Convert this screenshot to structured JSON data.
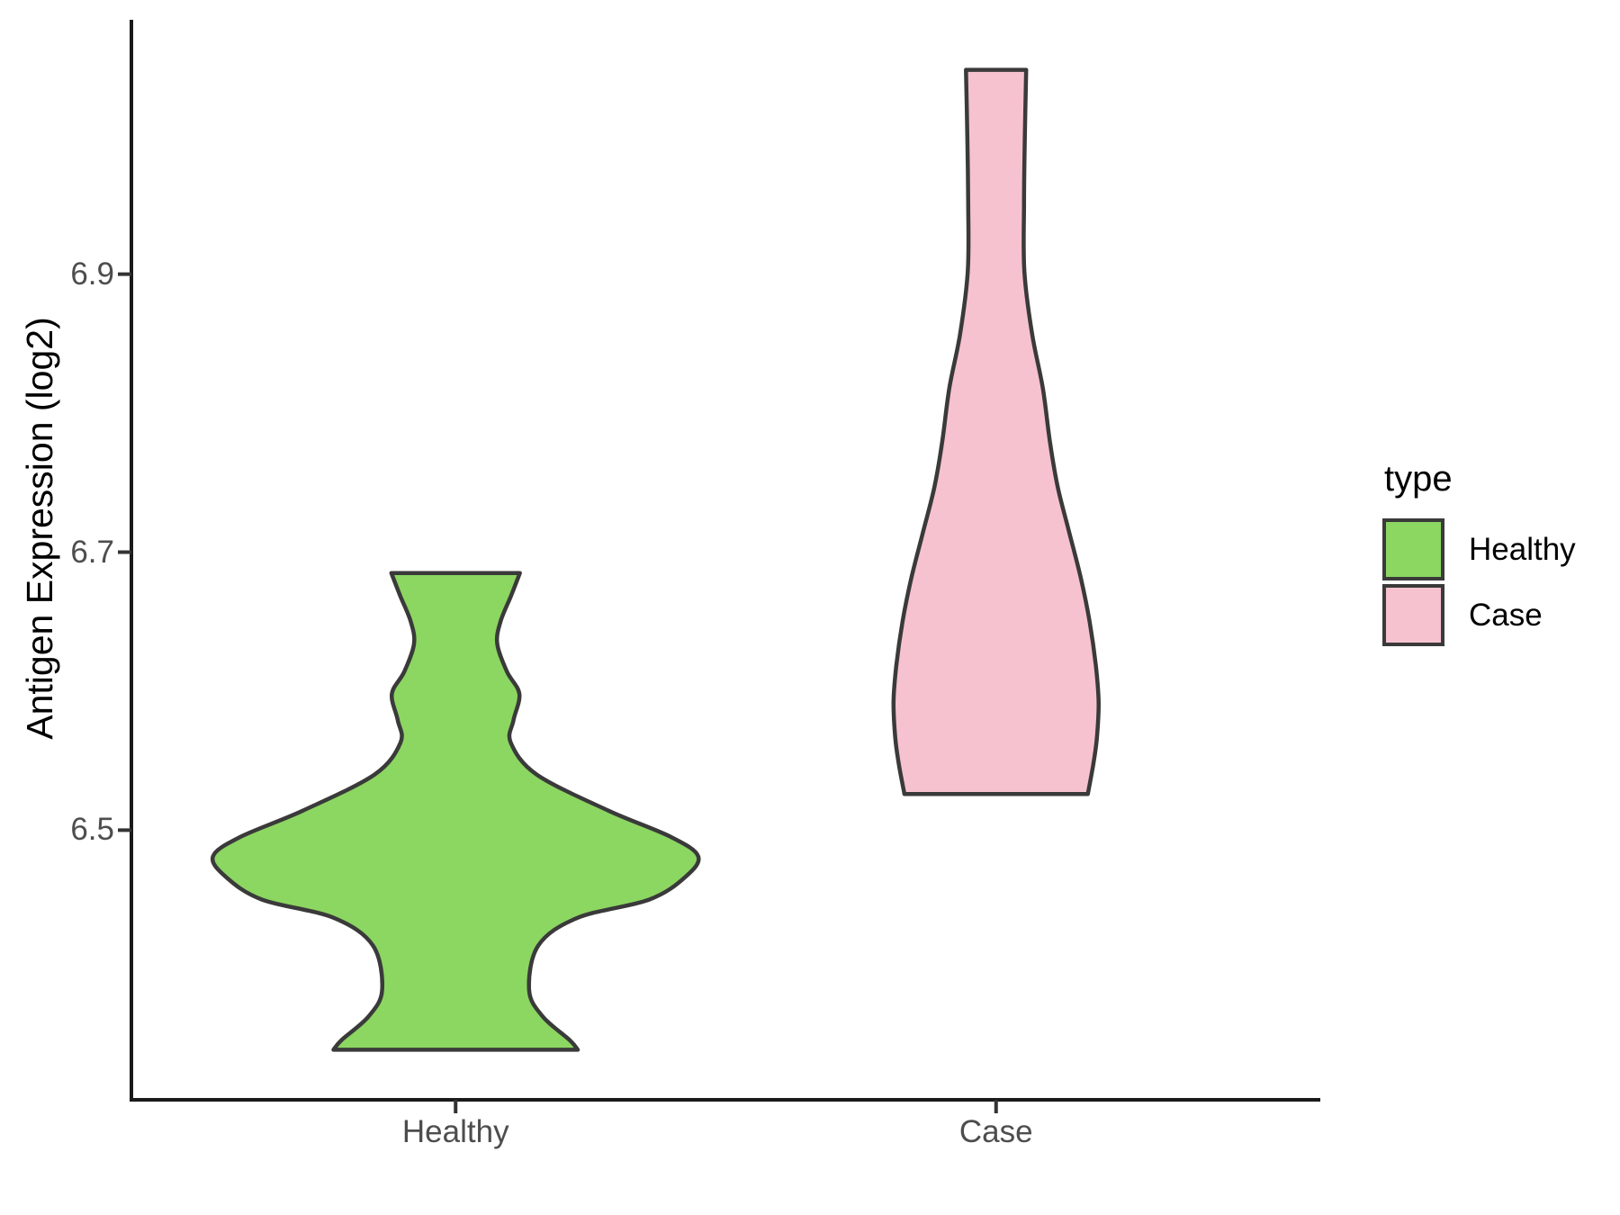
{
  "chart_data": {
    "type": "violin",
    "title": "",
    "xlabel": "",
    "ylabel": "Antigen Expression (log2)",
    "categories": [
      "Healthy",
      "Case"
    ],
    "ylim": [
      6.306,
      7.083
    ],
    "yticks": [
      {
        "value": 6.9,
        "label": "6.9"
      },
      {
        "value": 6.7,
        "label": "6.7"
      },
      {
        "value": 6.5,
        "label": "6.5"
      }
    ],
    "grid": false,
    "theme": "classic (no gridlines, black axis lines, white background)",
    "legend": {
      "title": "type",
      "position": "right",
      "entries": [
        {
          "label": "Healthy",
          "fill": "#8cd662"
        },
        {
          "label": "Case",
          "fill": "#f6c2cf"
        }
      ]
    },
    "series": [
      {
        "name": "Healthy",
        "fill": "#8cd662",
        "outline": "#3a3a3a",
        "value_range": {
          "min": 6.34,
          "max": 6.69
        },
        "widest_at": 6.49,
        "density_profile": [
          {
            "v": 6.685,
            "w": 0.119
          },
          {
            "v": 6.669,
            "w": 0.103
          },
          {
            "v": 6.65,
            "w": 0.083
          },
          {
            "v": 6.634,
            "w": 0.077
          },
          {
            "v": 6.614,
            "w": 0.095
          },
          {
            "v": 6.598,
            "w": 0.118
          },
          {
            "v": 6.579,
            "w": 0.107
          },
          {
            "v": 6.563,
            "w": 0.102
          },
          {
            "v": 6.54,
            "w": 0.15
          },
          {
            "v": 6.514,
            "w": 0.283
          },
          {
            "v": 6.495,
            "w": 0.399
          },
          {
            "v": 6.481,
            "w": 0.449
          },
          {
            "v": 6.466,
            "w": 0.424
          },
          {
            "v": 6.45,
            "w": 0.358
          },
          {
            "v": 6.437,
            "w": 0.226
          },
          {
            "v": 6.417,
            "w": 0.153
          },
          {
            "v": 6.385,
            "w": 0.136
          },
          {
            "v": 6.366,
            "w": 0.161
          },
          {
            "v": 6.349,
            "w": 0.211
          },
          {
            "v": 6.342,
            "w": 0.226
          }
        ]
      },
      {
        "name": "Case",
        "fill": "#f6c2cf",
        "outline": "#3a3a3a",
        "value_range": {
          "min": 6.53,
          "max": 7.05
        },
        "widest_at": 6.59,
        "density_profile": [
          {
            "v": 7.047,
            "w": 0.0557
          },
          {
            "v": 6.999,
            "w": 0.0532
          },
          {
            "v": 6.95,
            "w": 0.0516
          },
          {
            "v": 6.902,
            "w": 0.0524
          },
          {
            "v": 6.857,
            "w": 0.0666
          },
          {
            "v": 6.818,
            "w": 0.0865
          },
          {
            "v": 6.779,
            "w": 0.0998
          },
          {
            "v": 6.747,
            "w": 0.114
          },
          {
            "v": 6.715,
            "w": 0.1348
          },
          {
            "v": 6.682,
            "w": 0.1564
          },
          {
            "v": 6.65,
            "w": 0.1731
          },
          {
            "v": 6.618,
            "w": 0.1847
          },
          {
            "v": 6.592,
            "w": 0.1897
          },
          {
            "v": 6.566,
            "w": 0.1864
          },
          {
            "v": 6.547,
            "w": 0.1797
          },
          {
            "v": 6.526,
            "w": 0.1697
          }
        ]
      }
    ]
  },
  "colors": {
    "background": "#ffffff",
    "axis_line": "#1a1a1a",
    "tick_mark": "#333333",
    "tick_label": "#4d4d4d",
    "text": "#000000",
    "healthy_fill": "#8cd662",
    "case_fill": "#f6c2cf",
    "violin_outline": "#3a3a3a"
  }
}
